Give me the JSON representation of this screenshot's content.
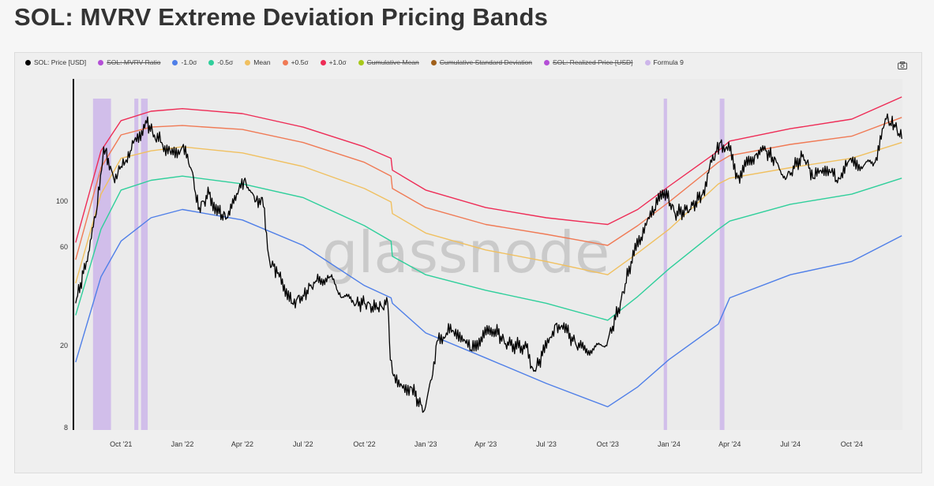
{
  "title": "SOL: MVRV Extreme Deviation Pricing Bands",
  "legend": [
    {
      "label": "SOL: Price [USD]",
      "color": "#000000",
      "hidden": false
    },
    {
      "label": "SOL: MVRV Ratio",
      "color": "#b44fd6",
      "hidden": true
    },
    {
      "label": "-1.0σ",
      "color": "#4f7fe8",
      "hidden": false
    },
    {
      "label": "-0.5σ",
      "color": "#2fcf9b",
      "hidden": false
    },
    {
      "label": "Mean",
      "color": "#f0c060",
      "hidden": false
    },
    {
      "label": "+0.5σ",
      "color": "#f07a55",
      "hidden": false
    },
    {
      "label": "+1.0σ",
      "color": "#ee2c56",
      "hidden": false
    },
    {
      "label": "Cumulative Mean",
      "color": "#a8c81a",
      "hidden": true
    },
    {
      "label": "Cumulative Standard Deviation",
      "color": "#a0601a",
      "hidden": true
    },
    {
      "label": "SOL: Realized Price [USD]",
      "color": "#b44fd6",
      "hidden": true
    },
    {
      "label": "Formula 9",
      "color": "#cdb6ea",
      "hidden": false
    }
  ],
  "icons": {
    "camera": "camera-icon"
  },
  "watermark": "glassnode",
  "chart_data": {
    "type": "line",
    "title": "SOL: MVRV Extreme Deviation Pricing Bands",
    "y_scale": "log",
    "ylim": [
      7.8,
      390
    ],
    "xlim": [
      "2021-07-24",
      "2024-12-16"
    ],
    "y_ticks": [
      {
        "v": 8,
        "label": "8"
      },
      {
        "v": 20,
        "label": "20"
      },
      {
        "v": 60,
        "label": "60"
      },
      {
        "v": 100,
        "label": "100"
      }
    ],
    "x_ticks": [
      {
        "d": "2021-10-01",
        "label": "Oct '21"
      },
      {
        "d": "2022-01-01",
        "label": "Jan '22"
      },
      {
        "d": "2022-04-01",
        "label": "Apr '22"
      },
      {
        "d": "2022-07-01",
        "label": "Jul '22"
      },
      {
        "d": "2022-10-01",
        "label": "Oct '22"
      },
      {
        "d": "2023-01-01",
        "label": "Jan '23"
      },
      {
        "d": "2023-04-01",
        "label": "Apr '23"
      },
      {
        "d": "2023-07-01",
        "label": "Jul '23"
      },
      {
        "d": "2023-10-01",
        "label": "Oct '23"
      },
      {
        "d": "2024-01-01",
        "label": "Jan '24"
      },
      {
        "d": "2024-04-01",
        "label": "Apr '24"
      },
      {
        "d": "2024-07-01",
        "label": "Jul '24"
      },
      {
        "d": "2024-10-01",
        "label": "Oct '24"
      }
    ],
    "grid": false,
    "legend_position": "top-left",
    "band_dates": [
      "2021-07-25",
      "2021-09-01",
      "2021-10-01",
      "2021-11-15",
      "2022-01-01",
      "2022-04-01",
      "2022-07-01",
      "2022-10-01",
      "2022-11-10",
      "2022-11-12",
      "2023-01-01",
      "2023-04-01",
      "2023-07-01",
      "2023-10-01",
      "2023-11-15",
      "2024-01-01",
      "2024-03-15",
      "2024-04-01",
      "2024-07-01",
      "2024-10-01",
      "2024-12-15"
    ],
    "series": [
      {
        "name": "+1.0σ",
        "color": "#ee2c56",
        "values": [
          63,
          175,
          245,
          272,
          280,
          265,
          228,
          183,
          161,
          141,
          113,
          93,
          83,
          77,
          91,
          118,
          175,
          195,
          224,
          249,
          319
        ]
      },
      {
        "name": "+0.5σ",
        "color": "#f07a55",
        "values": [
          52,
          145,
          209,
          228,
          232,
          222,
          192,
          154,
          132,
          115,
          93,
          77,
          69,
          61,
          76,
          99,
          154,
          166,
          188,
          206,
          254
        ]
      },
      {
        "name": "Mean",
        "color": "#f0c060",
        "values": [
          40,
          108,
          161,
          175,
          183,
          171,
          147,
          115,
          99,
          87,
          70,
          58,
          51,
          44,
          56,
          73,
          121,
          129,
          145,
          161,
          192
        ]
      },
      {
        "name": "-0.5σ",
        "color": "#2fcf9b",
        "values": [
          28,
          73,
          113,
          126,
          132,
          121,
          104,
          76,
          64,
          54,
          44,
          37,
          32,
          26.5,
          34.5,
          47,
          73,
          80,
          96.5,
          108,
          129
        ]
      },
      {
        "name": "-1.0σ",
        "color": "#4f7fe8",
        "values": [
          16.6,
          43,
          64,
          83,
          91,
          81,
          61,
          39,
          34,
          32,
          23,
          17.4,
          13.1,
          10.1,
          12.6,
          17.1,
          25.4,
          34,
          44,
          51,
          68
        ]
      }
    ],
    "price": {
      "name": "SOL: Price [USD]",
      "color": "#000000",
      "dates": [
        "2021-07-25",
        "2021-08-10",
        "2021-08-25",
        "2021-09-05",
        "2021-09-12",
        "2021-09-20",
        "2021-10-01",
        "2021-10-15",
        "2021-11-01",
        "2021-11-07",
        "2021-11-20",
        "2021-12-01",
        "2021-12-15",
        "2022-01-01",
        "2022-01-15",
        "2022-01-25",
        "2022-02-10",
        "2022-02-25",
        "2022-03-10",
        "2022-03-25",
        "2022-04-05",
        "2022-04-20",
        "2022-05-01",
        "2022-05-12",
        "2022-05-25",
        "2022-06-15",
        "2022-07-01",
        "2022-07-20",
        "2022-08-10",
        "2022-08-25",
        "2022-09-15",
        "2022-10-01",
        "2022-10-20",
        "2022-11-05",
        "2022-11-09",
        "2022-11-20",
        "2022-12-10",
        "2022-12-29",
        "2023-01-10",
        "2023-01-18",
        "2023-02-01",
        "2023-02-15",
        "2023-03-10",
        "2023-03-25",
        "2023-04-15",
        "2023-05-01",
        "2023-06-01",
        "2023-06-12",
        "2023-06-25",
        "2023-07-15",
        "2023-08-01",
        "2023-08-20",
        "2023-09-10",
        "2023-10-01",
        "2023-10-20",
        "2023-11-05",
        "2023-11-20",
        "2023-12-10",
        "2023-12-25",
        "2024-01-10",
        "2024-02-01",
        "2024-02-20",
        "2024-03-05",
        "2024-03-18",
        "2024-04-01",
        "2024-04-13",
        "2024-04-25",
        "2024-05-10",
        "2024-05-25",
        "2024-06-10",
        "2024-06-25",
        "2024-07-20",
        "2024-08-05",
        "2024-08-25",
        "2024-09-08",
        "2024-09-25",
        "2024-10-15",
        "2024-11-05",
        "2024-11-22",
        "2024-12-05",
        "2024-12-15"
      ],
      "values": [
        32,
        51,
        87,
        183,
        161,
        129,
        147,
        175,
        219,
        245,
        209,
        192,
        168,
        183,
        141,
        91,
        108,
        87,
        83,
        108,
        129,
        99,
        104,
        51,
        45,
        32,
        35,
        41,
        43,
        36,
        32,
        32,
        30,
        32,
        17,
        12.6,
        12.6,
        9.6,
        13.7,
        21,
        23,
        24,
        19,
        22,
        24,
        20.4,
        19.5,
        15,
        17.8,
        25.4,
        23,
        19.5,
        19,
        21,
        32,
        51,
        67,
        91,
        113,
        87,
        91,
        108,
        154,
        192,
        175,
        129,
        147,
        168,
        175,
        154,
        129,
        168,
        129,
        147,
        126,
        154,
        147,
        154,
        249,
        228,
        200
      ]
    },
    "formula9_ranges": [
      [
        "2021-08-20",
        "2021-09-16"
      ],
      [
        "2021-10-21",
        "2021-10-27"
      ],
      [
        "2021-10-31",
        "2021-11-10"
      ],
      [
        "2023-12-24",
        "2023-12-29"
      ],
      [
        "2024-03-17",
        "2024-03-24"
      ]
    ]
  }
}
